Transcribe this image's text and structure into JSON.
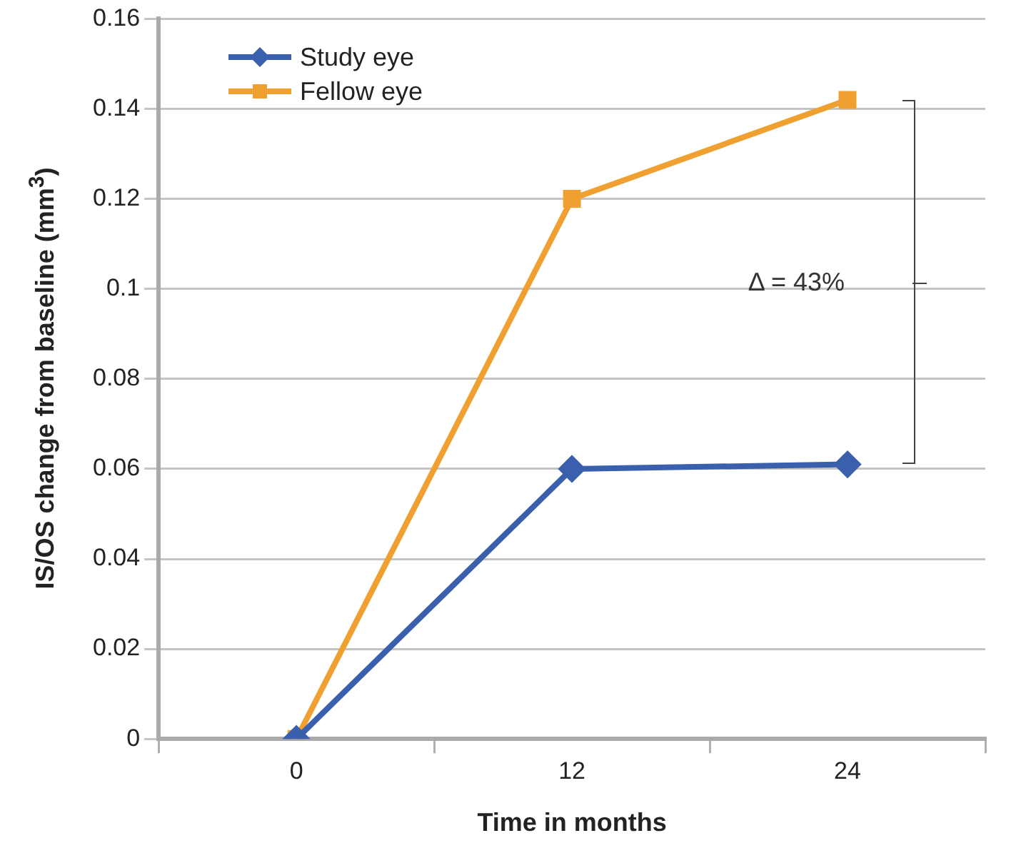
{
  "chart_data": {
    "type": "line",
    "xlabel": "Time in months",
    "ylabel": "IS/OS change from baseline (mm$^{3}$)",
    "categories": [
      "0",
      "12",
      "24"
    ],
    "series": [
      {
        "name": "Study eye",
        "color": "#3a5fad",
        "values": [
          0,
          0.06,
          0.061
        ],
        "marker": "diamond"
      },
      {
        "name": "Fellow eye",
        "color": "#f0a030",
        "values": [
          0,
          0.12,
          0.142
        ],
        "marker": "square"
      }
    ],
    "ylim": [
      0,
      0.16
    ],
    "yticks": [
      0,
      0.02,
      0.04,
      0.06,
      0.08,
      0.1,
      0.12,
      0.14,
      0.16
    ],
    "grid": "y",
    "legend": "top left",
    "annotations": [
      "Δ = 43%"
    ]
  }
}
